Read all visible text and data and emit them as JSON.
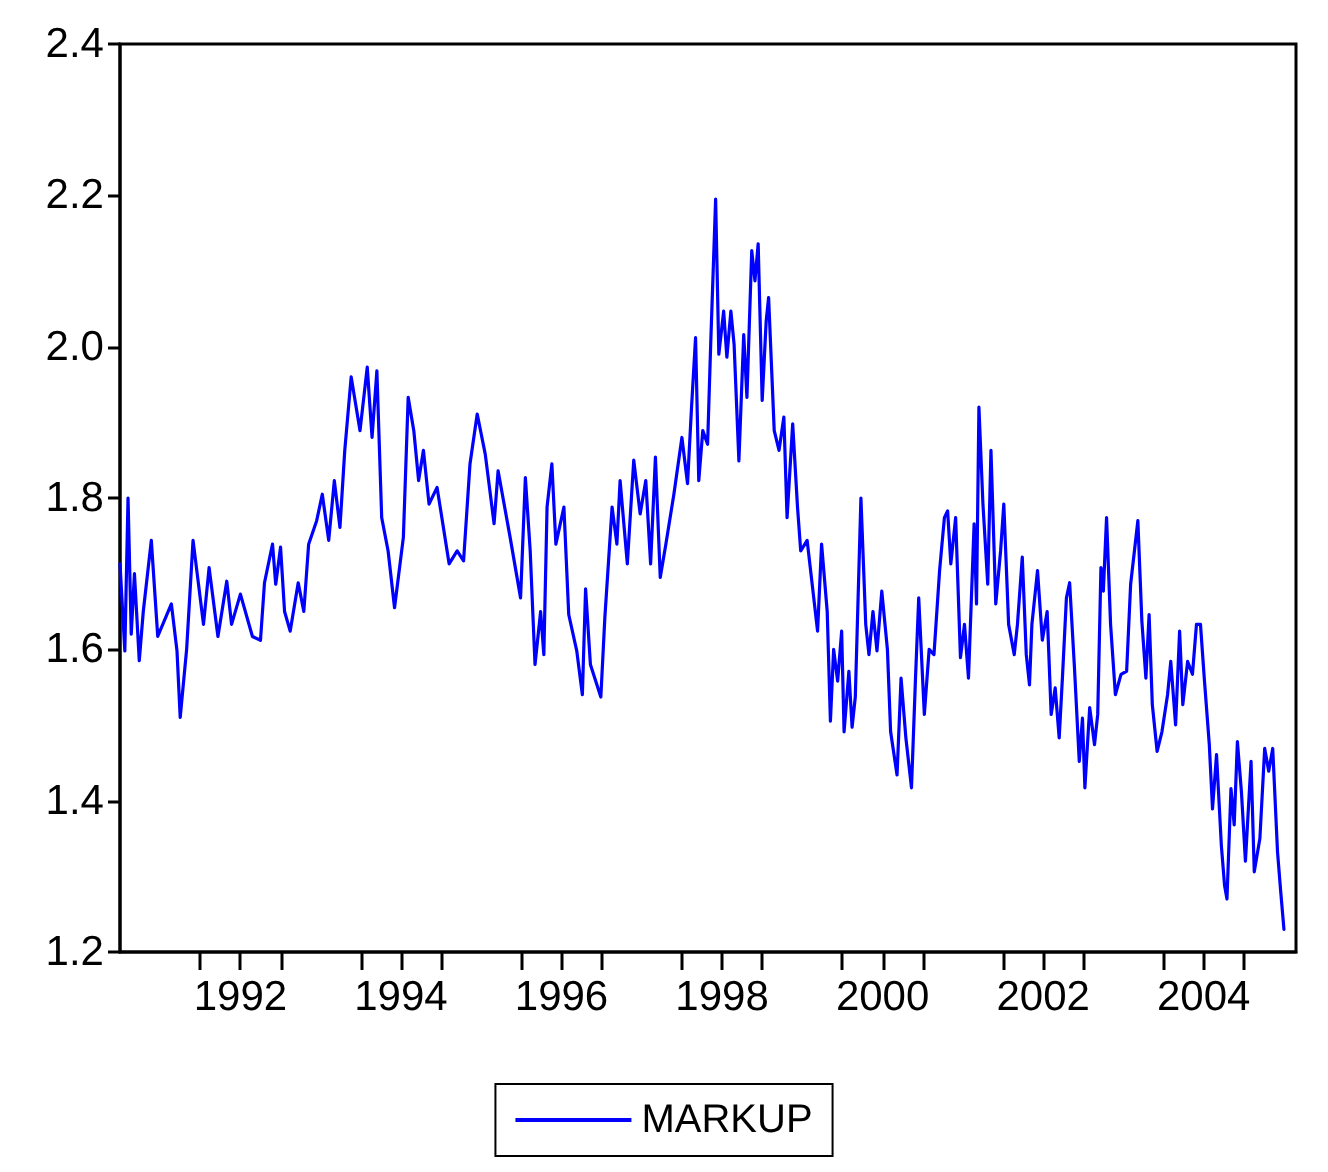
{
  "chart_data": {
    "type": "line",
    "x": [
      1990.5,
      1990.56,
      1990.6,
      1990.64,
      1990.68,
      1990.74,
      1990.79,
      1990.89,
      1990.97,
      1991.14,
      1991.21,
      1991.25,
      1991.33,
      1991.41,
      1991.54,
      1991.61,
      1991.72,
      1991.83,
      1991.89,
      1992.0,
      1992.15,
      1992.25,
      1992.3,
      1992.4,
      1992.44,
      1992.5,
      1992.55,
      1992.62,
      1992.72,
      1992.79,
      1992.85,
      1992.95,
      1993.02,
      1993.1,
      1993.17,
      1993.24,
      1993.3,
      1993.38,
      1993.49,
      1993.58,
      1993.64,
      1993.7,
      1993.76,
      1993.84,
      1993.92,
      1994.03,
      1994.09,
      1994.16,
      1994.22,
      1994.28,
      1994.35,
      1994.45,
      1994.6,
      1994.7,
      1994.78,
      1994.86,
      1994.95,
      1995.05,
      1995.16,
      1995.21,
      1995.36,
      1995.49,
      1995.55,
      1995.61,
      1995.67,
      1995.74,
      1995.78,
      1995.82,
      1995.88,
      1995.93,
      1996.03,
      1996.09,
      1996.19,
      1996.26,
      1996.3,
      1996.36,
      1996.49,
      1996.54,
      1996.63,
      1996.69,
      1996.73,
      1996.82,
      1996.9,
      1996.98,
      1997.05,
      1997.11,
      1997.17,
      1997.23,
      1997.3,
      1997.4,
      1997.5,
      1997.57,
      1997.62,
      1997.67,
      1997.71,
      1997.76,
      1997.82,
      1997.86,
      1997.92,
      1997.96,
      1998.02,
      1998.06,
      1998.11,
      1998.15,
      1998.21,
      1998.27,
      1998.31,
      1998.37,
      1998.41,
      1998.45,
      1998.5,
      1998.55,
      1998.58,
      1998.65,
      1998.71,
      1998.77,
      1998.81,
      1998.88,
      1998.94,
      1998.98,
      1999.06,
      1999.19,
      1999.24,
      1999.31,
      1999.35,
      1999.39,
      1999.44,
      1999.49,
      1999.52,
      1999.58,
      1999.62,
      1999.66,
      1999.73,
      1999.79,
      1999.83,
      1999.88,
      1999.93,
      1999.99,
      2000.06,
      2000.1,
      2000.18,
      2000.23,
      2000.29,
      2000.36,
      2000.41,
      2000.45,
      2000.52,
      2000.58,
      2000.64,
      2000.71,
      2000.77,
      2000.81,
      2000.85,
      2000.91,
      2000.97,
      2001.02,
      2001.07,
      2001.14,
      2001.17,
      2001.2,
      2001.25,
      2001.31,
      2001.35,
      2001.41,
      2001.47,
      2001.51,
      2001.57,
      2001.64,
      2001.68,
      2001.74,
      2001.79,
      2001.83,
      2001.86,
      2001.93,
      2001.99,
      2002.05,
      2002.1,
      2002.15,
      2002.2,
      2002.24,
      2002.29,
      2002.33,
      2002.39,
      2002.45,
      2002.49,
      2002.52,
      2002.58,
      2002.64,
      2002.68,
      2002.72,
      2002.75,
      2002.79,
      2002.84,
      2002.9,
      2002.97,
      2003.04,
      2003.09,
      2003.18,
      2003.23,
      2003.28,
      2003.32,
      2003.36,
      2003.42,
      2003.48,
      2003.55,
      2003.59,
      2003.65,
      2003.7,
      2003.74,
      2003.8,
      2003.86,
      2003.91,
      2003.96,
      2004.01,
      2004.07,
      2004.11,
      2004.16,
      2004.22,
      2004.26,
      2004.29,
      2004.34,
      2004.38,
      2004.42,
      2004.47,
      2004.52,
      2004.59,
      2004.63,
      2004.7,
      2004.76,
      2004.81,
      2004.86,
      2004.92,
      2004.96,
      2005.0
    ],
    "series": [
      {
        "name": "MARKUP",
        "color": "#0000ff",
        "values": [
          1.713,
          1.598,
          1.8,
          1.62,
          1.7,
          1.585,
          1.65,
          1.744,
          1.617,
          1.66,
          1.598,
          1.51,
          1.6,
          1.744,
          1.633,
          1.708,
          1.617,
          1.69,
          1.633,
          1.673,
          1.617,
          1.612,
          1.688,
          1.739,
          1.686,
          1.735,
          1.65,
          1.624,
          1.688,
          1.65,
          1.739,
          1.77,
          1.805,
          1.744,
          1.823,
          1.761,
          1.863,
          1.96,
          1.889,
          1.973,
          1.88,
          1.968,
          1.774,
          1.73,
          1.655,
          1.748,
          1.933,
          1.889,
          1.823,
          1.863,
          1.792,
          1.814,
          1.713,
          1.73,
          1.717,
          1.845,
          1.911,
          1.858,
          1.766,
          1.836,
          1.748,
          1.668,
          1.827,
          1.73,
          1.58,
          1.65,
          1.593,
          1.788,
          1.845,
          1.739,
          1.788,
          1.646,
          1.598,
          1.54,
          1.68,
          1.58,
          1.537,
          1.642,
          1.788,
          1.739,
          1.823,
          1.713,
          1.85,
          1.779,
          1.823,
          1.713,
          1.854,
          1.695,
          1.739,
          1.805,
          1.88,
          1.819,
          1.92,
          2.012,
          1.823,
          1.889,
          1.871,
          2.008,
          2.195,
          1.99,
          2.047,
          1.986,
          2.047,
          2.003,
          1.849,
          2.016,
          1.933,
          2.127,
          2.087,
          2.136,
          1.929,
          2.034,
          2.065,
          1.889,
          1.863,
          1.907,
          1.774,
          1.898,
          1.788,
          1.73,
          1.744,
          1.624,
          1.739,
          1.65,
          1.505,
          1.6,
          1.558,
          1.624,
          1.491,
          1.571,
          1.497,
          1.537,
          1.8,
          1.633,
          1.593,
          1.65,
          1.598,
          1.677,
          1.6,
          1.491,
          1.434,
          1.562,
          1.483,
          1.417,
          1.562,
          1.668,
          1.514,
          1.6,
          1.593,
          1.704,
          1.774,
          1.783,
          1.713,
          1.774,
          1.589,
          1.633,
          1.562,
          1.766,
          1.66,
          1.92,
          1.792,
          1.686,
          1.863,
          1.66,
          1.73,
          1.792,
          1.633,
          1.593,
          1.633,
          1.722,
          1.593,
          1.553,
          1.633,
          1.704,
          1.612,
          1.65,
          1.514,
          1.549,
          1.483,
          1.562,
          1.668,
          1.688,
          1.576,
          1.452,
          1.509,
          1.417,
          1.523,
          1.474,
          1.514,
          1.708,
          1.677,
          1.774,
          1.633,
          1.54,
          1.567,
          1.571,
          1.686,
          1.77,
          1.637,
          1.562,
          1.646,
          1.527,
          1.465,
          1.491,
          1.54,
          1.584,
          1.5,
          1.624,
          1.527,
          1.584,
          1.567,
          1.633,
          1.633,
          1.558,
          1.474,
          1.389,
          1.461,
          1.341,
          1.288,
          1.27,
          1.416,
          1.368,
          1.478,
          1.412,
          1.32,
          1.452,
          1.306,
          1.35,
          1.469,
          1.439,
          1.469,
          1.332,
          1.279,
          1.23
        ]
      }
    ],
    "xlim": [
      1990.5,
      2005.15
    ],
    "xticks": [
      {
        "value": 1991.5,
        "label": null
      },
      1992,
      {
        "value": 1992.5,
        "label": null
      },
      {
        "value": 1993.5,
        "label": null
      },
      1994,
      {
        "value": 1994.5,
        "label": null
      },
      {
        "value": 1995.5,
        "label": null
      },
      1996,
      {
        "value": 1996.5,
        "label": null
      },
      {
        "value": 1997.5,
        "label": null
      },
      1998,
      {
        "value": 1998.5,
        "label": null
      },
      {
        "value": 1999.5,
        "label": null
      },
      2000,
      {
        "value": 2000.5,
        "label": null
      },
      {
        "value": 2001.5,
        "label": null
      },
      2002,
      {
        "value": 2002.5,
        "label": null
      },
      {
        "value": 2003.5,
        "label": null
      },
      2004,
      {
        "value": 2004.5,
        "label": null
      }
    ],
    "ylim": [
      1.2,
      2.4
    ],
    "yticks": [
      1.2,
      1.4,
      1.6,
      1.8,
      {
        "value": 2,
        "label": "2.0"
      },
      2.2,
      2.4
    ],
    "grid": false,
    "legend": "bottom",
    "marker": "none",
    "line_style": "solid"
  }
}
